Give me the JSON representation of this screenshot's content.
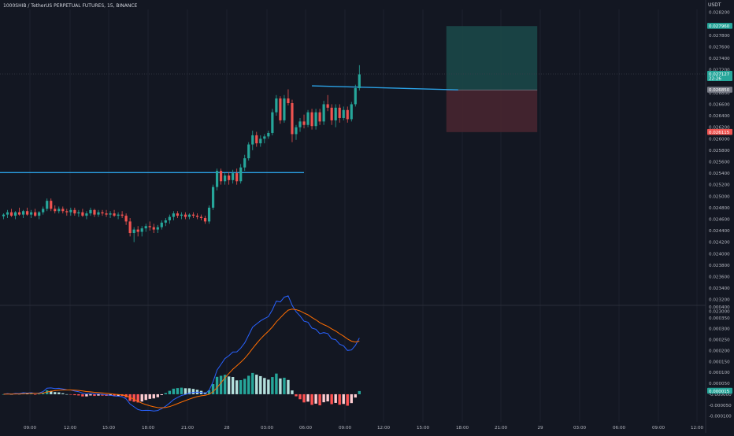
{
  "header": {
    "symbol_line": "1000SHIB / TetherUS PERPETUAL FUTURES, 15, BINANCE",
    "currency": "USDT"
  },
  "colors": {
    "background": "#131722",
    "up": "#26a69a",
    "down": "#ef5350",
    "macd_line": "#2962ff",
    "signal_line": "#ff6d00",
    "trendline": "#2ba2e6",
    "target_zone": "#1b4a4a",
    "stop_zone": "#4a2630"
  },
  "chart_data": [
    {
      "type": "candlestick",
      "series": [
        {
          "name": "",
          "values": []
        }
      ],
      "y_ticks": [
        "0.028200",
        "0.027800",
        "0.027600",
        "0.027400",
        "0.027200",
        "0.026800",
        "0.026600",
        "0.026400",
        "0.026200",
        "0.026000",
        "0.025800",
        "0.025600",
        "0.025400",
        "0.025200",
        "0.025000",
        "0.024800",
        "0.024600",
        "0.024400",
        "0.024200",
        "0.024000",
        "0.023800",
        "0.023600",
        "0.023400",
        "0.023200",
        "0.023000"
      ],
      "y_tick_values": [
        0.0282,
        0.0278,
        0.0276,
        0.0274,
        0.0272,
        0.0268,
        0.0266,
        0.0264,
        0.0262,
        0.026,
        0.0258,
        0.0256,
        0.0254,
        0.0252,
        0.025,
        0.0248,
        0.0246,
        0.0244,
        0.0242,
        0.024,
        0.0238,
        0.0236,
        0.0234,
        0.0232,
        0.023
      ],
      "ylim": [
        0.0231,
        0.02825
      ],
      "x_ticks": [
        "09:00",
        "12:00",
        "15:00",
        "18:00",
        "21:00",
        "28",
        "03:00",
        "06:00",
        "09:00",
        "12:00",
        "15:00",
        "18:00",
        "21:00",
        "29",
        "03:00",
        "06:00",
        "09:00",
        "12:00"
      ],
      "price_labels": [
        {
          "value": 0.02796,
          "text": "0.027960",
          "color": "#26a69a"
        },
        {
          "value": 0.027127,
          "text": "0.027127",
          "sub": "22:26",
          "color": "#26a69a"
        },
        {
          "value": 0.02685,
          "text": "0.026850",
          "color": "#787b86"
        },
        {
          "value": 0.026115,
          "text": "0.026115",
          "color": "#ef5350"
        }
      ],
      "ohlc": [
        [
          0.02465,
          0.0247,
          0.0246,
          0.02468
        ],
        [
          0.02468,
          0.02476,
          0.02462,
          0.02472
        ],
        [
          0.02472,
          0.02478,
          0.02464,
          0.02466
        ],
        [
          0.02466,
          0.02474,
          0.0246,
          0.02472
        ],
        [
          0.02472,
          0.0248,
          0.02466,
          0.02468
        ],
        [
          0.02468,
          0.02476,
          0.02462,
          0.02474
        ],
        [
          0.02474,
          0.0248,
          0.02466,
          0.02468
        ],
        [
          0.02468,
          0.02476,
          0.02462,
          0.02472
        ],
        [
          0.02472,
          0.02478,
          0.02464,
          0.02466
        ],
        [
          0.02466,
          0.02474,
          0.0246,
          0.02472
        ],
        [
          0.02472,
          0.02482,
          0.02468,
          0.02478
        ],
        [
          0.02478,
          0.02496,
          0.02474,
          0.02492
        ],
        [
          0.02492,
          0.02496,
          0.02474,
          0.02478
        ],
        [
          0.02478,
          0.02484,
          0.0247,
          0.02474
        ],
        [
          0.02474,
          0.02482,
          0.0247,
          0.02478
        ],
        [
          0.02478,
          0.02482,
          0.0247,
          0.02474
        ],
        [
          0.02474,
          0.02478,
          0.02466,
          0.02472
        ],
        [
          0.02472,
          0.0248,
          0.02466,
          0.02476
        ],
        [
          0.02476,
          0.0248,
          0.02466,
          0.0247
        ],
        [
          0.0247,
          0.02476,
          0.02464,
          0.02472
        ],
        [
          0.02472,
          0.02478,
          0.02464,
          0.02466
        ],
        [
          0.02466,
          0.02474,
          0.0246,
          0.0247
        ],
        [
          0.0247,
          0.0248,
          0.02466,
          0.02476
        ],
        [
          0.02476,
          0.02478,
          0.02464,
          0.02468
        ],
        [
          0.02468,
          0.02476,
          0.02464,
          0.02472
        ],
        [
          0.02472,
          0.02476,
          0.02466,
          0.0247
        ],
        [
          0.0247,
          0.02476,
          0.02464,
          0.02468
        ],
        [
          0.02468,
          0.02474,
          0.02462,
          0.0247
        ],
        [
          0.0247,
          0.02476,
          0.02464,
          0.02466
        ],
        [
          0.02466,
          0.02472,
          0.0246,
          0.02468
        ],
        [
          0.02468,
          0.02474,
          0.02462,
          0.02466
        ],
        [
          0.02466,
          0.0247,
          0.0245,
          0.02456
        ],
        [
          0.02456,
          0.02462,
          0.0243,
          0.02436
        ],
        [
          0.02436,
          0.02446,
          0.0242,
          0.02442
        ],
        [
          0.02442,
          0.02448,
          0.0243,
          0.02438
        ],
        [
          0.02438,
          0.02448,
          0.0243,
          0.02444
        ],
        [
          0.02444,
          0.02452,
          0.02438,
          0.02448
        ],
        [
          0.02448,
          0.02456,
          0.0244,
          0.02446
        ],
        [
          0.02446,
          0.02452,
          0.02436,
          0.02442
        ],
        [
          0.02442,
          0.0245,
          0.02436,
          0.02446
        ],
        [
          0.02446,
          0.02458,
          0.02442,
          0.02454
        ],
        [
          0.02454,
          0.02462,
          0.02448,
          0.02458
        ],
        [
          0.02458,
          0.02468,
          0.02452,
          0.02464
        ],
        [
          0.02464,
          0.02474,
          0.02458,
          0.0247
        ],
        [
          0.0247,
          0.02474,
          0.02462,
          0.02466
        ],
        [
          0.02466,
          0.02472,
          0.0246,
          0.02468
        ],
        [
          0.02468,
          0.02472,
          0.0246,
          0.02464
        ],
        [
          0.02464,
          0.0247,
          0.0246,
          0.02468
        ],
        [
          0.02468,
          0.02472,
          0.02462,
          0.02466
        ],
        [
          0.02466,
          0.0247,
          0.0246,
          0.02464
        ],
        [
          0.02464,
          0.02468,
          0.02458,
          0.02462
        ],
        [
          0.02462,
          0.02466,
          0.02452,
          0.02456
        ],
        [
          0.02456,
          0.02484,
          0.02452,
          0.0248
        ],
        [
          0.0248,
          0.0252,
          0.02476,
          0.02516
        ],
        [
          0.02516,
          0.02548,
          0.0251,
          0.02544
        ],
        [
          0.02544,
          0.02548,
          0.0252,
          0.02526
        ],
        [
          0.02526,
          0.0254,
          0.0252,
          0.02536
        ],
        [
          0.02536,
          0.02542,
          0.0252,
          0.02528
        ],
        [
          0.02528,
          0.02546,
          0.02522,
          0.0254
        ],
        [
          0.0254,
          0.02548,
          0.0252,
          0.02526
        ],
        [
          0.02526,
          0.02556,
          0.02522,
          0.0255
        ],
        [
          0.0255,
          0.02572,
          0.02544,
          0.02566
        ],
        [
          0.02566,
          0.02594,
          0.02562,
          0.0259
        ],
        [
          0.0259,
          0.02614,
          0.0258,
          0.02606
        ],
        [
          0.02606,
          0.02612,
          0.02586,
          0.02592
        ],
        [
          0.02592,
          0.02606,
          0.02586,
          0.026
        ],
        [
          0.026,
          0.02608,
          0.02592,
          0.02604
        ],
        [
          0.02604,
          0.02614,
          0.026,
          0.0261
        ],
        [
          0.0261,
          0.02652,
          0.02606,
          0.02646
        ],
        [
          0.02646,
          0.02676,
          0.0264,
          0.0267
        ],
        [
          0.0267,
          0.02674,
          0.02626,
          0.02632
        ],
        [
          0.02632,
          0.02676,
          0.02628,
          0.0267
        ],
        [
          0.0267,
          0.02686,
          0.02658,
          0.02662
        ],
        [
          0.02662,
          0.02668,
          0.02594,
          0.02608
        ],
        [
          0.02608,
          0.02624,
          0.02598,
          0.0262
        ],
        [
          0.0262,
          0.02636,
          0.02612,
          0.0263
        ],
        [
          0.0263,
          0.02642,
          0.02618,
          0.02624
        ],
        [
          0.02624,
          0.0265,
          0.0262,
          0.02646
        ],
        [
          0.02646,
          0.02652,
          0.02616,
          0.02622
        ],
        [
          0.02622,
          0.02652,
          0.02616,
          0.02646
        ],
        [
          0.02646,
          0.02652,
          0.02624,
          0.0263
        ],
        [
          0.0263,
          0.02666,
          0.02624,
          0.0266
        ],
        [
          0.0266,
          0.02676,
          0.02648,
          0.02654
        ],
        [
          0.02654,
          0.0266,
          0.02624,
          0.02632
        ],
        [
          0.02632,
          0.0266,
          0.0262,
          0.02654
        ],
        [
          0.02654,
          0.0266,
          0.02628,
          0.02636
        ],
        [
          0.02636,
          0.02656,
          0.02632,
          0.0265
        ],
        [
          0.0265,
          0.02656,
          0.02628,
          0.02634
        ],
        [
          0.02634,
          0.02664,
          0.0263,
          0.0266
        ],
        [
          0.0266,
          0.02694,
          0.02656,
          0.02688
        ],
        [
          0.02688,
          0.02728,
          0.02684,
          0.02712
        ]
      ],
      "trendlines": [
        {
          "from": [
            -5,
            0.02541
          ],
          "to": [
            76,
            0.02541
          ]
        },
        {
          "from": [
            78,
            0.02692
          ],
          "to": [
            115,
            0.02685
          ]
        }
      ],
      "position": {
        "entry": 0.02685,
        "target": 0.02796,
        "stop": 0.026115,
        "bar_from": 112,
        "bar_to": 135
      }
    },
    {
      "type": "bar",
      "series": [
        {
          "name": "",
          "values": []
        },
        {
          "name": "",
          "values": []
        }
      ],
      "y_ticks": [
        "0.000400",
        "0.000350",
        "0.000300",
        "0.000250",
        "0.000200",
        "0.000150",
        "0.000100",
        "0.000050",
        "-0.000000",
        "-0.000050",
        "-0.000100"
      ],
      "y_tick_values": [
        0.0004,
        0.00035,
        0.0003,
        0.00025,
        0.0002,
        0.00015,
        0.0001,
        5e-05,
        0,
        -5e-05,
        -0.0001
      ],
      "ylim": [
        -0.000112,
        0.0004
      ],
      "macd_label": {
        "value": 1.5e-05,
        "text": "0.000015",
        "color": "#26a69a"
      }
    }
  ]
}
